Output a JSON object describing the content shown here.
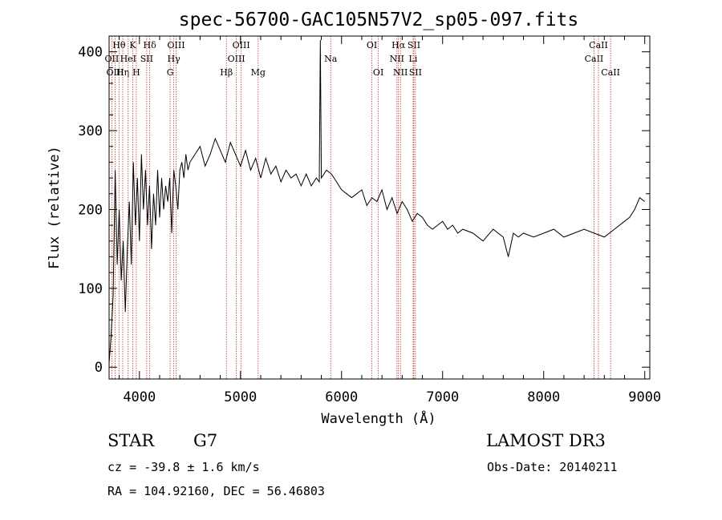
{
  "chart_data": {
    "type": "line",
    "title": "spec-56700-GAC105N57V2_sp05-097.fits",
    "xlabel": "Wavelength (Å)",
    "ylabel": "Flux (relative)",
    "xlim": [
      3700,
      9050
    ],
    "ylim": [
      -15,
      420
    ],
    "xticks": [
      4000,
      5000,
      6000,
      7000,
      8000,
      9000
    ],
    "yticks": [
      0,
      100,
      200,
      300,
      400
    ],
    "series": [
      {
        "name": "flux",
        "x": [
          3700,
          3720,
          3740,
          3760,
          3780,
          3800,
          3820,
          3840,
          3860,
          3880,
          3900,
          3920,
          3940,
          3960,
          3980,
          4000,
          4020,
          4040,
          4060,
          4080,
          4100,
          4120,
          4140,
          4160,
          4180,
          4200,
          4220,
          4240,
          4260,
          4280,
          4300,
          4320,
          4340,
          4360,
          4380,
          4400,
          4420,
          4440,
          4460,
          4480,
          4500,
          4550,
          4600,
          4650,
          4700,
          4750,
          4800,
          4850,
          4900,
          4950,
          5000,
          5050,
          5100,
          5150,
          5200,
          5250,
          5300,
          5350,
          5400,
          5450,
          5500,
          5550,
          5600,
          5650,
          5700,
          5750,
          5780,
          5790,
          5800,
          5850,
          5900,
          5950,
          6000,
          6050,
          6100,
          6150,
          6200,
          6250,
          6300,
          6350,
          6400,
          6450,
          6500,
          6550,
          6600,
          6650,
          6700,
          6750,
          6800,
          6850,
          6900,
          6950,
          7000,
          7050,
          7100,
          7150,
          7200,
          7300,
          7400,
          7500,
          7600,
          7650,
          7700,
          7750,
          7800,
          7900,
          8000,
          8100,
          8200,
          8300,
          8400,
          8500,
          8600,
          8700,
          8800,
          8850,
          8900,
          8950,
          9000
        ],
        "values": [
          5,
          40,
          90,
          250,
          130,
          200,
          110,
          160,
          70,
          150,
          210,
          130,
          260,
          180,
          240,
          160,
          270,
          200,
          250,
          180,
          230,
          150,
          220,
          180,
          250,
          190,
          240,
          200,
          230,
          210,
          240,
          170,
          250,
          230,
          200,
          250,
          260,
          240,
          270,
          250,
          260,
          270,
          280,
          255,
          270,
          290,
          275,
          260,
          285,
          270,
          255,
          275,
          250,
          265,
          240,
          265,
          245,
          255,
          235,
          250,
          240,
          245,
          230,
          245,
          230,
          240,
          235,
          415,
          240,
          250,
          245,
          235,
          225,
          220,
          215,
          220,
          225,
          205,
          215,
          210,
          225,
          200,
          215,
          195,
          210,
          200,
          185,
          195,
          190,
          180,
          175,
          180,
          185,
          175,
          180,
          170,
          175,
          170,
          160,
          175,
          165,
          140,
          170,
          165,
          170,
          165,
          170,
          175,
          165,
          170,
          175,
          170,
          165,
          175,
          185,
          190,
          200,
          215,
          210
        ]
      }
    ],
    "lines": [
      {
        "label": "Hθ",
        "x": 3798,
        "row": 0
      },
      {
        "label": "OII",
        "x": 3727,
        "row": 1
      },
      {
        "label": "OIII",
        "x": 3760,
        "row": 2
      },
      {
        "label": "Hη",
        "x": 3835,
        "row": 2
      },
      {
        "label": "HeI",
        "x": 3889,
        "row": 1
      },
      {
        "label": "K",
        "x": 3934,
        "row": 0
      },
      {
        "label": "H",
        "x": 3969,
        "row": 2
      },
      {
        "label": "SII",
        "x": 4072,
        "row": 1
      },
      {
        "label": "Hδ",
        "x": 4102,
        "row": 0
      },
      {
        "label": "OIII",
        "x": 4363,
        "row": 0
      },
      {
        "label": "Hγ",
        "x": 4340,
        "row": 1
      },
      {
        "label": "G",
        "x": 4304,
        "row": 2
      },
      {
        "label": "Hβ",
        "x": 4861,
        "row": 2
      },
      {
        "label": "OIII",
        "x": 4959,
        "row": 1
      },
      {
        "label": "OIII",
        "x": 5007,
        "row": 0
      },
      {
        "label": "Mg",
        "x": 5175,
        "row": 2
      },
      {
        "label": "Na",
        "x": 5893,
        "row": 1
      },
      {
        "label": "OI",
        "x": 6300,
        "row": 0
      },
      {
        "label": "OI",
        "x": 6364,
        "row": 2
      },
      {
        "label": "NII",
        "x": 6548,
        "row": 1
      },
      {
        "label": "Hα",
        "x": 6563,
        "row": 0
      },
      {
        "label": "NII",
        "x": 6583,
        "row": 2
      },
      {
        "label": "SII",
        "x": 6716,
        "row": 0
      },
      {
        "label": "Li",
        "x": 6708,
        "row": 1
      },
      {
        "label": "SII",
        "x": 6731,
        "row": 2
      },
      {
        "label": "CaII",
        "x": 8498,
        "row": 1
      },
      {
        "label": "CaII",
        "x": 8542,
        "row": 0
      },
      {
        "label": "CaII",
        "x": 8662,
        "row": 2
      }
    ]
  },
  "info": {
    "class": "STAR",
    "subclass": "G7",
    "survey": "LAMOST DR3",
    "cz": "cz = -39.8 ± 1.6 km/s",
    "obsdate": "Obs-Date: 20140211",
    "radec": "RA = 104.92160, DEC =  56.46803"
  },
  "colors": {
    "line_marker": "#c0392b",
    "spectrum": "#000000"
  }
}
